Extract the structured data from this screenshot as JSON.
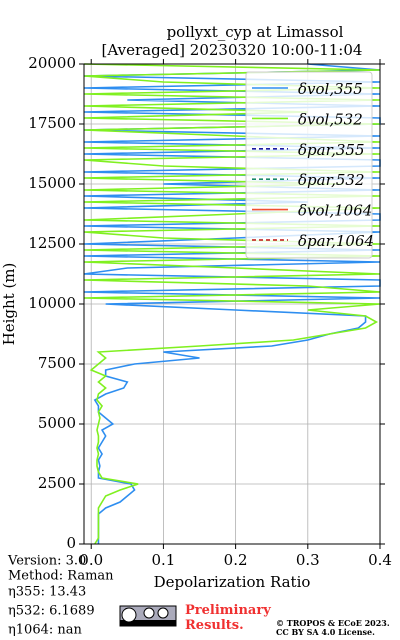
{
  "chart_data": {
    "type": "profile",
    "title": [
      "pollyxt_cyp at Limassol",
      "[Averaged] 20230320 10:00-11:04"
    ],
    "xlabel": "Depolarization Ratio",
    "ylabel": "Height (m)",
    "xlim": [
      -0.01,
      0.4
    ],
    "xticks": [
      {
        "value": 0,
        "label": "0.0"
      },
      0.1,
      0.2,
      0.3,
      0.4
    ],
    "ylim": [
      0,
      20000
    ],
    "yticks": [
      0,
      2500,
      5000,
      7500,
      10000,
      12500,
      15000,
      17500,
      20000
    ],
    "grid": true,
    "legend": "upper right",
    "y": [
      0,
      250,
      500,
      750,
      1000,
      1250,
      1500,
      1750,
      2000,
      2250,
      2500,
      2750,
      3000,
      3250,
      3500,
      3750,
      4000,
      4250,
      4500,
      4750,
      5000,
      5250,
      5500,
      5750,
      6000,
      6250,
      6500,
      6750,
      7000,
      7250,
      7500,
      7750,
      8000,
      8250,
      8500,
      8750,
      9000,
      9250,
      9500,
      9750,
      10000,
      10250,
      10500,
      10750,
      11000,
      11250,
      11500,
      11750,
      12000,
      12250,
      12500,
      12750,
      13000,
      13250,
      13500,
      13750,
      14000,
      14250,
      14500,
      14750,
      15000,
      15250,
      15500,
      15750,
      16000,
      16250,
      16500,
      16750,
      17000,
      17250,
      17500,
      17750,
      18000,
      18250,
      18500,
      18750,
      19000,
      19250,
      19500,
      19750,
      20000
    ],
    "series": [
      {
        "name": "δvol,355",
        "color": "#2e8ef0",
        "linestyle": "solid",
        "values": [
          0.01,
          0.01,
          0.01,
          0.01,
          0.01,
          0.01,
          0.02,
          0.04,
          0.05,
          0.06,
          0.055,
          0.01,
          0.01,
          0.012,
          0.01,
          0.015,
          0.01,
          0.015,
          0.02,
          0.015,
          0.03,
          0.02,
          0.01,
          0.01,
          0.005,
          0.02,
          0.045,
          0.05,
          0.02,
          0.02,
          0.06,
          0.15,
          0.1,
          0.25,
          0.3,
          0.33,
          0.37,
          0.38,
          0.38,
          0.2,
          0.02,
          0.4,
          -0.01,
          0.4,
          0.4,
          -0.01,
          0.05,
          0.4,
          -0.01,
          0.4,
          -0.01,
          0.2,
          0.4,
          -0.01,
          0.4,
          0.4,
          -0.01,
          0.3,
          -0.01,
          0.4,
          0.1,
          0.4,
          -0.01,
          0.4,
          0.4,
          -0.01,
          0.4,
          -0.01,
          0.4,
          -0.01,
          0.4,
          0.4,
          -0.01,
          0.4,
          0.05,
          0.4,
          -0.01,
          0.4,
          -0.01,
          0.4,
          0.3
        ]
      },
      {
        "name": "δvol,532",
        "color": "#80f020",
        "linestyle": "solid",
        "values": [
          0.005,
          0.01,
          0.01,
          0.01,
          0.01,
          0.01,
          0.01,
          0.015,
          0.02,
          0.04,
          0.065,
          0.015,
          0.01,
          0.008,
          0.008,
          0.01,
          0.008,
          0.01,
          0.01,
          0.008,
          0.01,
          0.012,
          0.01,
          0.015,
          0.008,
          0.01,
          0.02,
          0.01,
          0.02,
          0.0,
          0.01,
          0.02,
          0.01,
          0.15,
          0.28,
          0.33,
          0.38,
          0.395,
          0.38,
          0.3,
          0.4,
          -0.01,
          0.4,
          0.3,
          -0.01,
          0.4,
          0.2,
          -0.01,
          0.4,
          -0.01,
          0.4,
          0.1,
          -0.01,
          0.4,
          -0.01,
          0.2,
          0.4,
          -0.01,
          0.4,
          -0.01,
          0.35,
          -0.01,
          0.4,
          0.1,
          -0.01,
          0.4,
          -0.01,
          0.4,
          0.2,
          -0.01,
          0.4,
          -0.01,
          0.3,
          -0.01,
          0.4,
          -0.01,
          0.4,
          0.1,
          -0.01,
          0.4,
          -0.01
        ]
      },
      {
        "name": "δpar,355",
        "color": "#1a1aa0",
        "linestyle": "dashed",
        "values": [
          null,
          null,
          null,
          null,
          null,
          null,
          null,
          null,
          null,
          null,
          null,
          null,
          null,
          null,
          null,
          null,
          null,
          null,
          null,
          null,
          null,
          null,
          null,
          null,
          null,
          null,
          null,
          null,
          null,
          null,
          null,
          null,
          null,
          null,
          null,
          null,
          null,
          null,
          null,
          null,
          null,
          null,
          null,
          null,
          null,
          null,
          null,
          null,
          null,
          null,
          null,
          null,
          null,
          null,
          null,
          null,
          null,
          null,
          null,
          null,
          null,
          null,
          null,
          null,
          null,
          null,
          null,
          null,
          null,
          null,
          null,
          null,
          null,
          null,
          null,
          null,
          null,
          null,
          null,
          null,
          null
        ]
      },
      {
        "name": "δpar,532",
        "color": "#1a8a6a",
        "linestyle": "dashed",
        "values": [
          null,
          null,
          null,
          null,
          null,
          null,
          null,
          null,
          null,
          null,
          null,
          null,
          null,
          null,
          null,
          null,
          null,
          null,
          null,
          null,
          null,
          null,
          null,
          null,
          null,
          null,
          null,
          null,
          null,
          null,
          null,
          null,
          null,
          null,
          null,
          null,
          null,
          null,
          null,
          null,
          null,
          null,
          null,
          null,
          null,
          null,
          null,
          null,
          null,
          null,
          null,
          null,
          null,
          null,
          null,
          null,
          null,
          null,
          null,
          null,
          null,
          null,
          null,
          null,
          null,
          null,
          null,
          null,
          null,
          null,
          null,
          null,
          null,
          null,
          null,
          null,
          null,
          null,
          null,
          null,
          null
        ]
      },
      {
        "name": "δvol,1064",
        "color": "#f05030",
        "linestyle": "solid",
        "values": [
          null,
          null,
          null,
          null,
          null,
          null,
          null,
          null,
          null,
          null,
          null,
          null,
          null,
          null,
          null,
          null,
          null,
          null,
          null,
          null,
          null,
          null,
          null,
          null,
          null,
          null,
          null,
          null,
          null,
          null,
          null,
          null,
          null,
          null,
          null,
          null,
          null,
          null,
          null,
          null,
          null,
          null,
          null,
          null,
          null,
          null,
          null,
          null,
          null,
          null,
          null,
          null,
          null,
          null,
          null,
          null,
          null,
          null,
          null,
          null,
          null,
          null,
          null,
          null,
          null,
          null,
          null,
          null,
          null,
          null,
          null,
          null,
          null,
          null,
          null,
          null,
          null,
          null,
          null,
          null,
          null
        ]
      },
      {
        "name": "δpar,1064",
        "color": "#c01010",
        "linestyle": "dashed",
        "values": [
          null,
          null,
          null,
          null,
          null,
          null,
          null,
          null,
          null,
          null,
          null,
          null,
          null,
          null,
          null,
          null,
          null,
          null,
          null,
          null,
          null,
          null,
          null,
          null,
          null,
          null,
          null,
          null,
          null,
          null,
          null,
          null,
          null,
          null,
          null,
          null,
          null,
          null,
          null,
          null,
          null,
          null,
          null,
          null,
          null,
          null,
          null,
          null,
          null,
          null,
          null,
          null,
          null,
          null,
          null,
          null,
          null,
          null,
          null,
          null,
          null,
          null,
          null,
          null,
          null,
          null,
          null,
          null,
          null,
          null,
          null,
          null,
          null,
          null,
          null,
          null,
          null,
          null,
          null,
          null,
          null
        ]
      }
    ]
  },
  "info": [
    "Version: 3.0",
    "Method: Raman",
    "η355:  13.43",
    "η532: 6.1689",
    "η1064:    nan"
  ],
  "notice": "Preliminary Results.",
  "license": [
    "© TROPOS & ECoE 2023.",
    "CC BY SA 4.0 License."
  ]
}
